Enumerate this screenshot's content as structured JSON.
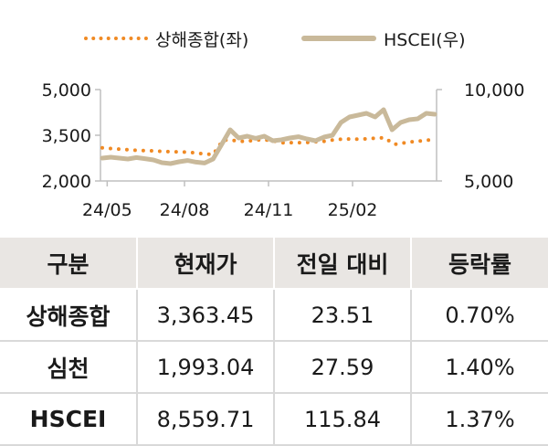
{
  "chart_data": {
    "type": "line",
    "title": "",
    "xlabel": "",
    "ylabel_left": "",
    "ylabel_right": "",
    "x_ticks": [
      "24/05",
      "24/08",
      "24/11",
      "25/02"
    ],
    "y_left": {
      "ticks": [
        "5,000",
        "3,500",
        "2,000"
      ],
      "range": [
        2000,
        5000
      ]
    },
    "y_right": {
      "ticks": [
        "10,000",
        "5,000"
      ],
      "range": [
        5000,
        10000
      ]
    },
    "legend_placement": "top",
    "grid": false,
    "series": [
      {
        "name": "상해종합(좌)",
        "axis": "left",
        "style": "dotted",
        "color": "#f08a24",
        "values": [
          3090,
          3060,
          3040,
          3010,
          3000,
          2990,
          2970,
          2960,
          2950,
          2930,
          2890,
          2870,
          3350,
          3330,
          3300,
          3330,
          3360,
          3310,
          3250,
          3260,
          3250,
          3280,
          3300,
          3350,
          3380,
          3370,
          3380,
          3400,
          3420,
          3200,
          3250,
          3300,
          3320,
          3380
        ]
      },
      {
        "name": "HSCEI(우)",
        "axis": "right",
        "style": "solid",
        "color": "#c9b99a",
        "values": [
          6250,
          6300,
          6250,
          6200,
          6280,
          6220,
          6150,
          6000,
          5950,
          6050,
          6120,
          6030,
          5980,
          6200,
          7000,
          7800,
          7350,
          7450,
          7330,
          7450,
          7200,
          7250,
          7350,
          7420,
          7300,
          7200,
          7400,
          7500,
          8200,
          8500,
          8600,
          8700,
          8500,
          8900,
          7800,
          8200,
          8350,
          8400,
          8700,
          8650
        ]
      }
    ]
  },
  "table": {
    "headers": [
      "구분",
      "현재가",
      "전일 대비",
      "등락률"
    ],
    "rows": [
      [
        "상해종합",
        "3,363.45",
        "23.51",
        "0.70%"
      ],
      [
        "심천",
        "1,993.04",
        "27.59",
        "1.40%"
      ],
      [
        "HSCEI",
        "8,559.71",
        "115.84",
        "1.37%"
      ]
    ]
  }
}
